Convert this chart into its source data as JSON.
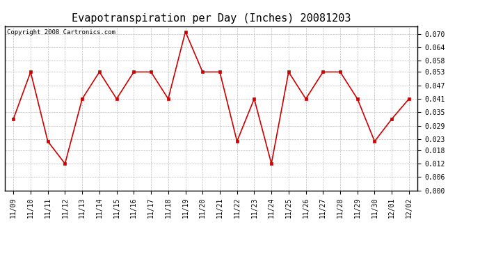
{
  "title": "Evapotranspiration per Day (Inches) 20081203",
  "copyright": "Copyright 2008 Cartronics.com",
  "x_labels": [
    "11/09",
    "11/10",
    "11/11",
    "11/12",
    "11/13",
    "11/14",
    "11/15",
    "11/16",
    "11/17",
    "11/18",
    "11/19",
    "11/20",
    "11/21",
    "11/22",
    "11/23",
    "11/24",
    "11/25",
    "11/26",
    "11/27",
    "11/28",
    "11/29",
    "11/30",
    "12/01",
    "12/02"
  ],
  "y_values": [
    0.032,
    0.053,
    0.022,
    0.012,
    0.041,
    0.053,
    0.041,
    0.053,
    0.053,
    0.041,
    0.071,
    0.053,
    0.053,
    0.022,
    0.041,
    0.012,
    0.053,
    0.041,
    0.053,
    0.053,
    0.041,
    0.022,
    0.032,
    0.041
  ],
  "line_color": "#cc0000",
  "marker": "s",
  "marker_size": 3,
  "ylim": [
    0.0,
    0.0735
  ],
  "yticks": [
    0.0,
    0.006,
    0.012,
    0.018,
    0.023,
    0.029,
    0.035,
    0.041,
    0.047,
    0.053,
    0.058,
    0.064,
    0.07
  ],
  "grid_color": "#bbbbbb",
  "background_color": "#ffffff",
  "plot_bg_color": "#ffffff",
  "title_fontsize": 11,
  "tick_fontsize": 7,
  "copyright_fontsize": 6.5
}
